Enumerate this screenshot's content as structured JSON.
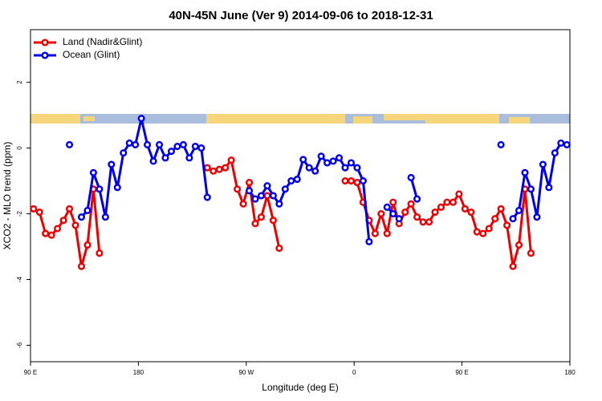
{
  "chart_data": {
    "type": "line",
    "title": "40N-45N June (Ver 9)   2014-09-06 to 2018-12-31",
    "x_label": "Longitude (deg E)",
    "y_label": "XCO2 - MLO trend (ppm)",
    "x": [
      92.5,
      97.5,
      102.5,
      107.5,
      112.5,
      117.5,
      122.5,
      127.5,
      132.5,
      137.5,
      142.5,
      147.5,
      152.5,
      157.5,
      162.5,
      167.5,
      172.5,
      177.5,
      182.5,
      187.5,
      192.5,
      197.5,
      202.5,
      207.5,
      212.5,
      217.5,
      222.5,
      227.5,
      232.5,
      237.5,
      242.5,
      247.5,
      252.5,
      257.5,
      262.5,
      267.5,
      272.5,
      277.5,
      282.5,
      287.5,
      292.5,
      297.5,
      302.5,
      307.5,
      312.5,
      317.5,
      322.5,
      327.5,
      332.5,
      337.5,
      342.5,
      347.5,
      352.5,
      357.5,
      362.5,
      367.5,
      372.5,
      377.5,
      382.5,
      387.5,
      392.5,
      397.5,
      402.5,
      407.5,
      412.5,
      417.5,
      422.5,
      427.5,
      432.5,
      437.5,
      442.5,
      447.5,
      452.5,
      457.5,
      462.5,
      467.5,
      472.5,
      477.5,
      482.5,
      487.5,
      492.5,
      497.5,
      502.5,
      507.5,
      512.5,
      517.5,
      522.5,
      527.5,
      532.5,
      537.5
    ],
    "series": [
      {
        "name": "Land (Nadir&Glint)",
        "color": "#ee0000",
        "values": [
          -1.85,
          -1.95,
          -2.6,
          -2.65,
          -2.45,
          -2.2,
          -1.85,
          -2.35,
          -3.6,
          -2.95,
          -1.25,
          -3.2,
          null,
          null,
          null,
          null,
          null,
          null,
          null,
          null,
          null,
          null,
          null,
          null,
          null,
          null,
          null,
          null,
          null,
          -0.6,
          -0.7,
          -0.65,
          -0.6,
          -0.37,
          -1.25,
          -1.7,
          -1.05,
          -2.3,
          -2.1,
          -1.45,
          -2.2,
          -3.05,
          null,
          null,
          null,
          null,
          null,
          null,
          null,
          null,
          null,
          null,
          -1.0,
          -1.0,
          -1.05,
          -1.65,
          -2.2,
          -2.6,
          -2.0,
          -2.6,
          -1.65,
          -2.3,
          -1.95,
          -1.7,
          -2.1,
          -2.25,
          -2.25,
          -1.95,
          -1.8,
          -1.65,
          -1.65,
          -1.4,
          -1.85,
          -1.95,
          -2.55,
          -2.6,
          -2.45,
          -2.15,
          -1.85,
          -2.35,
          -3.6,
          -2.95,
          -1.25,
          -3.2,
          null,
          null,
          null,
          null,
          null,
          null
        ]
      },
      {
        "name": "Ocean (Glint)",
        "color": "#0000ee",
        "values": [
          null,
          null,
          null,
          null,
          null,
          null,
          0.1,
          null,
          -2.1,
          -1.9,
          -0.75,
          -1.25,
          -2.1,
          -0.5,
          -1.2,
          -0.15,
          0.15,
          0.1,
          0.9,
          0.1,
          -0.4,
          0.1,
          -0.3,
          -0.1,
          0.05,
          0.1,
          -0.3,
          0.05,
          0,
          -1.5,
          null,
          null,
          null,
          null,
          null,
          null,
          -1.3,
          -1.55,
          -1.45,
          -1.15,
          -1.45,
          -1.7,
          -1.25,
          -1.0,
          -0.95,
          -0.35,
          -0.6,
          -0.7,
          -0.25,
          -0.45,
          -0.4,
          -0.3,
          -0.6,
          -0.45,
          -0.6,
          -1.0,
          -2.85,
          null,
          null,
          -1.8,
          -2.0,
          -2.15,
          null,
          -0.9,
          -1.55,
          null,
          null,
          null,
          null,
          null,
          null,
          null,
          null,
          null,
          null,
          null,
          null,
          null,
          0.1,
          null,
          -2.15,
          -1.9,
          -0.75,
          -1.25,
          -2.1,
          -0.5,
          -1.2,
          -0.15,
          0.15,
          0.1
        ]
      }
    ],
    "xlim": [
      90,
      540
    ],
    "xticks": [
      {
        "value": 90,
        "label": "90 E"
      },
      {
        "value": 180,
        "label": "180"
      },
      {
        "value": 270,
        "label": "90 W"
      },
      {
        "value": 360,
        "label": "0"
      },
      {
        "value": 450,
        "label": "90 E"
      },
      {
        "value": 540,
        "label": "180"
      }
    ],
    "ylim": [
      -6.5,
      3.6
    ],
    "yticks": [
      2,
      0,
      -2,
      -4,
      -6
    ],
    "legend": "top-left"
  }
}
